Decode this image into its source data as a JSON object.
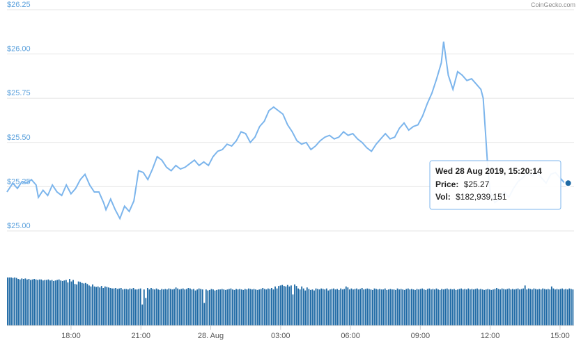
{
  "credit": "CoinGecko.com",
  "tooltip": {
    "date": "Wed 28 Aug 2019, 15:20:14",
    "price_label": "Price:",
    "price_value": "$25.27",
    "vol_label": "Vol:",
    "vol_value": "$182,939,151"
  },
  "colors": {
    "line": "#7cb5ec",
    "volume": "#1f6aa5",
    "grid": "#e6e6e6",
    "axis_label": "#5aa0dc",
    "tooltip_border": "#7cb5ec",
    "marker": "#1f6aa5"
  },
  "chart_data": {
    "type": "line",
    "y_axis": {
      "ticks": [
        "$26.25",
        "$26.00",
        "$25.75",
        "$25.50",
        "$25.25",
        "$25.00"
      ],
      "values": [
        26.25,
        26.0,
        25.75,
        25.5,
        25.25,
        25.0
      ],
      "ylim": [
        25.0,
        26.25
      ]
    },
    "x_axis": {
      "ticks": [
        "18:00",
        "21:00",
        "28. Aug",
        "03:00",
        "06:00",
        "09:00",
        "12:00",
        "15:00"
      ],
      "tick_hours": [
        18,
        21,
        24,
        27,
        30,
        33,
        36,
        39
      ],
      "xlim_hours": [
        15.25,
        39.6
      ]
    },
    "series": [
      {
        "points": [
          [
            15.25,
            25.22
          ],
          [
            15.5,
            25.27
          ],
          [
            15.7,
            25.24
          ],
          [
            15.9,
            25.28
          ],
          [
            16.1,
            25.27
          ],
          [
            16.3,
            25.29
          ],
          [
            16.5,
            25.26
          ],
          [
            16.6,
            25.19
          ],
          [
            16.8,
            25.23
          ],
          [
            17.0,
            25.2
          ],
          [
            17.2,
            25.26
          ],
          [
            17.4,
            25.22
          ],
          [
            17.6,
            25.2
          ],
          [
            17.8,
            25.26
          ],
          [
            18.0,
            25.21
          ],
          [
            18.2,
            25.24
          ],
          [
            18.4,
            25.29
          ],
          [
            18.6,
            25.32
          ],
          [
            18.8,
            25.26
          ],
          [
            19.0,
            25.22
          ],
          [
            19.2,
            25.22
          ],
          [
            19.4,
            25.16
          ],
          [
            19.5,
            25.12
          ],
          [
            19.7,
            25.18
          ],
          [
            19.9,
            25.12
          ],
          [
            20.1,
            25.07
          ],
          [
            20.3,
            25.14
          ],
          [
            20.5,
            25.11
          ],
          [
            20.7,
            25.17
          ],
          [
            20.9,
            25.34
          ],
          [
            21.1,
            25.33
          ],
          [
            21.3,
            25.29
          ],
          [
            21.5,
            25.35
          ],
          [
            21.7,
            25.42
          ],
          [
            21.9,
            25.4
          ],
          [
            22.1,
            25.36
          ],
          [
            22.3,
            25.34
          ],
          [
            22.5,
            25.37
          ],
          [
            22.7,
            25.35
          ],
          [
            22.9,
            25.36
          ],
          [
            23.1,
            25.38
          ],
          [
            23.3,
            25.4
          ],
          [
            23.5,
            25.37
          ],
          [
            23.7,
            25.39
          ],
          [
            23.9,
            25.37
          ],
          [
            24.1,
            25.42
          ],
          [
            24.3,
            25.45
          ],
          [
            24.5,
            25.46
          ],
          [
            24.7,
            25.49
          ],
          [
            24.9,
            25.48
          ],
          [
            25.1,
            25.51
          ],
          [
            25.3,
            25.56
          ],
          [
            25.5,
            25.55
          ],
          [
            25.7,
            25.5
          ],
          [
            25.9,
            25.53
          ],
          [
            26.1,
            25.59
          ],
          [
            26.3,
            25.62
          ],
          [
            26.5,
            25.68
          ],
          [
            26.7,
            25.7
          ],
          [
            26.9,
            25.68
          ],
          [
            27.1,
            25.66
          ],
          [
            27.3,
            25.6
          ],
          [
            27.5,
            25.56
          ],
          [
            27.7,
            25.51
          ],
          [
            27.9,
            25.49
          ],
          [
            28.1,
            25.5
          ],
          [
            28.3,
            25.46
          ],
          [
            28.5,
            25.48
          ],
          [
            28.7,
            25.51
          ],
          [
            28.9,
            25.53
          ],
          [
            29.1,
            25.54
          ],
          [
            29.3,
            25.52
          ],
          [
            29.5,
            25.53
          ],
          [
            29.7,
            25.56
          ],
          [
            29.9,
            25.54
          ],
          [
            30.1,
            25.55
          ],
          [
            30.3,
            25.52
          ],
          [
            30.5,
            25.5
          ],
          [
            30.7,
            25.47
          ],
          [
            30.9,
            25.45
          ],
          [
            31.1,
            25.49
          ],
          [
            31.3,
            25.52
          ],
          [
            31.5,
            25.55
          ],
          [
            31.7,
            25.52
          ],
          [
            31.9,
            25.53
          ],
          [
            32.1,
            25.58
          ],
          [
            32.3,
            25.61
          ],
          [
            32.5,
            25.57
          ],
          [
            32.7,
            25.59
          ],
          [
            32.9,
            25.6
          ],
          [
            33.1,
            25.65
          ],
          [
            33.3,
            25.72
          ],
          [
            33.5,
            25.78
          ],
          [
            33.7,
            25.86
          ],
          [
            33.9,
            25.95
          ],
          [
            34.0,
            26.07
          ],
          [
            34.2,
            25.88
          ],
          [
            34.4,
            25.8
          ],
          [
            34.6,
            25.9
          ],
          [
            34.8,
            25.88
          ],
          [
            35.0,
            25.85
          ],
          [
            35.2,
            25.86
          ],
          [
            35.4,
            25.83
          ],
          [
            35.6,
            25.8
          ],
          [
            35.7,
            25.75
          ],
          [
            35.8,
            25.55
          ],
          [
            35.9,
            25.35
          ],
          [
            36.0,
            25.22
          ],
          [
            36.2,
            25.16
          ],
          [
            36.4,
            25.18
          ],
          [
            36.6,
            25.22
          ],
          [
            36.8,
            25.19
          ],
          [
            37.0,
            25.24
          ],
          [
            37.2,
            25.28
          ],
          [
            37.4,
            25.3
          ],
          [
            37.6,
            25.33
          ],
          [
            37.8,
            25.31
          ],
          [
            38.0,
            25.33
          ],
          [
            38.2,
            25.3
          ],
          [
            38.4,
            25.27
          ],
          [
            38.6,
            25.32
          ],
          [
            38.8,
            25.33
          ],
          [
            39.0,
            25.3
          ],
          [
            39.2,
            25.27
          ],
          [
            39.35,
            25.27
          ]
        ]
      }
    ],
    "tooltip_point": [
      39.35,
      25.27
    ],
    "volume": {
      "values": [
        0.96,
        0.96,
        0.96,
        0.95,
        0.96,
        0.95,
        0.93,
        0.92,
        0.94,
        0.93,
        0.94,
        0.92,
        0.93,
        0.91,
        0.92,
        0.93,
        0.92,
        0.91,
        0.92,
        0.92,
        0.9,
        0.91,
        0.91,
        0.92,
        0.9,
        0.91,
        0.89,
        0.9,
        0.91,
        0.92,
        0.9,
        0.89,
        0.9,
        0.91,
        0.86,
        0.93,
        0.88,
        0.91,
        0.83,
        0.82,
        0.88,
        0.87,
        0.85,
        0.84,
        0.85,
        0.83,
        0.8,
        0.78,
        0.82,
        0.78,
        0.77,
        0.78,
        0.76,
        0.79,
        0.75,
        0.78,
        0.77,
        0.76,
        0.75,
        0.74,
        0.74,
        0.75,
        0.73,
        0.74,
        0.75,
        0.72,
        0.73,
        0.73,
        0.72,
        0.74,
        0.73,
        0.75,
        0.72,
        0.72,
        0.73,
        0.74,
        0.42,
        0.72,
        0.55,
        0.75,
        0.72,
        0.75,
        0.73,
        0.72,
        0.74,
        0.72,
        0.71,
        0.73,
        0.72,
        0.73,
        0.72,
        0.74,
        0.73,
        0.72,
        0.73,
        0.76,
        0.74,
        0.72,
        0.73,
        0.74,
        0.72,
        0.73,
        0.75,
        0.74,
        0.72,
        0.73,
        0.7,
        0.72,
        0.74,
        0.73,
        0.72,
        0.45,
        0.72,
        0.7,
        0.71,
        0.73,
        0.72,
        0.7,
        0.71,
        0.72,
        0.72,
        0.73,
        0.72,
        0.71,
        0.72,
        0.73,
        0.74,
        0.72,
        0.71,
        0.73,
        0.72,
        0.73,
        0.72,
        0.71,
        0.73,
        0.72,
        0.74,
        0.73,
        0.72,
        0.73,
        0.72,
        0.71,
        0.72,
        0.73,
        0.75,
        0.73,
        0.72,
        0.74,
        0.73,
        0.75,
        0.72,
        0.78,
        0.74,
        0.79,
        0.8,
        0.81,
        0.79,
        0.78,
        0.81,
        0.78,
        0.8,
        0.62,
        0.82,
        0.79,
        0.74,
        0.72,
        0.78,
        0.74,
        0.7,
        0.76,
        0.73,
        0.71,
        0.72,
        0.7,
        0.74,
        0.73,
        0.72,
        0.74,
        0.73,
        0.72,
        0.74,
        0.7,
        0.72,
        0.73,
        0.74,
        0.72,
        0.73,
        0.71,
        0.74,
        0.72,
        0.73,
        0.78,
        0.76,
        0.72,
        0.74,
        0.72,
        0.73,
        0.74,
        0.72,
        0.73,
        0.75,
        0.72,
        0.73,
        0.74,
        0.73,
        0.72,
        0.71,
        0.74,
        0.73,
        0.72,
        0.73,
        0.72,
        0.72,
        0.74,
        0.71,
        0.72,
        0.73,
        0.72,
        0.72,
        0.71,
        0.74,
        0.72,
        0.73,
        0.72,
        0.71,
        0.73,
        0.74,
        0.72,
        0.73,
        0.72,
        0.71,
        0.73,
        0.72,
        0.73,
        0.74,
        0.72,
        0.71,
        0.73,
        0.74,
        0.72,
        0.73,
        0.72,
        0.74,
        0.72,
        0.71,
        0.73,
        0.72,
        0.73,
        0.74,
        0.72,
        0.73,
        0.72,
        0.73,
        0.71,
        0.72,
        0.73,
        0.74,
        0.72,
        0.73,
        0.72,
        0.74,
        0.72,
        0.73,
        0.72,
        0.73,
        0.74,
        0.72,
        0.73,
        0.72,
        0.71,
        0.72,
        0.73,
        0.72,
        0.71,
        0.72,
        0.73,
        0.75,
        0.73,
        0.72,
        0.74,
        0.73,
        0.72,
        0.73,
        0.74,
        0.72,
        0.73,
        0.72,
        0.73,
        0.74,
        0.72,
        0.73,
        0.74,
        0.8,
        0.72,
        0.74,
        0.73,
        0.72,
        0.74,
        0.73,
        0.72,
        0.73,
        0.72,
        0.74,
        0.73,
        0.72,
        0.73,
        0.72,
        0.78,
        0.74,
        0.72,
        0.73,
        0.72,
        0.73,
        0.74,
        0.72,
        0.73,
        0.72,
        0.74,
        0.73,
        0.72
      ]
    }
  }
}
